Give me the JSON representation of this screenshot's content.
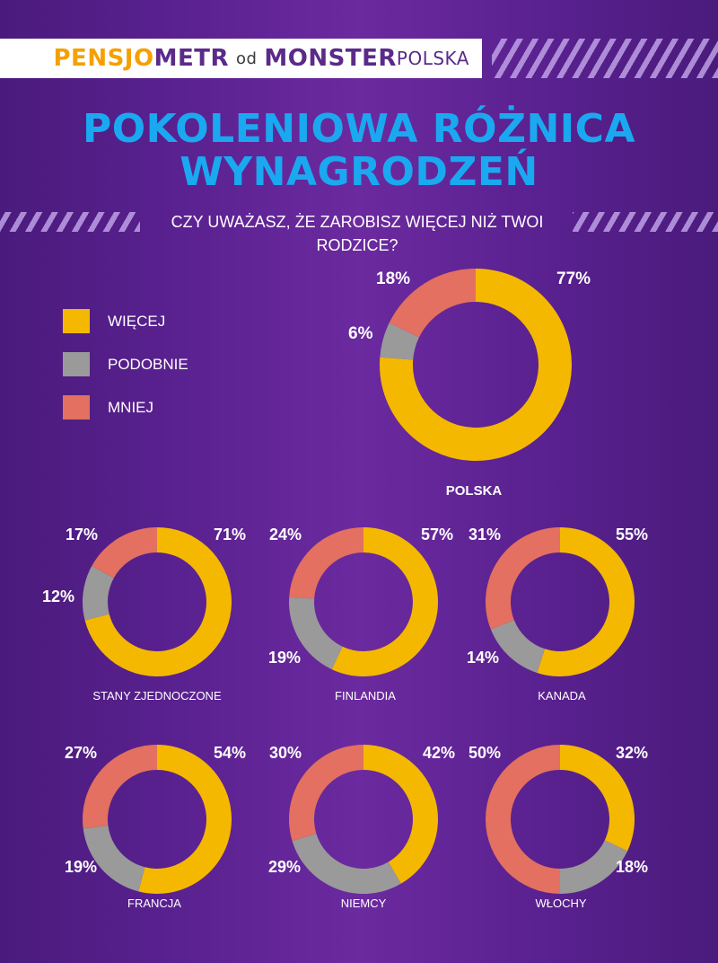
{
  "header": {
    "brand_part1": "PENSJO",
    "brand_part2": "METR",
    "connector": "od",
    "monster_part1": "MONSTER",
    "monster_part2": "POLSKA"
  },
  "title": {
    "line1": "POKOLENIOWA RÓŻNICA",
    "line2": "WYNAGRODZEŃ"
  },
  "subtitle": "CZY UWAŻASZ, ŻE ZAROBISZ WIĘCEJ NIŻ TWOI RODZICE?",
  "colors": {
    "wiecej": "#f5b800",
    "podobnie": "#9a9a9a",
    "mniej": "#e37060",
    "title": "#1aa9f0",
    "brand_orange": "#f5a000",
    "brand_purple": "#5b2a8a"
  },
  "legend": [
    {
      "label": "WIĘCEJ",
      "color": "#f5b800"
    },
    {
      "label": "PODOBNIE",
      "color": "#9a9a9a"
    },
    {
      "label": "MNIEJ",
      "color": "#e37060"
    }
  ],
  "chart_data": {
    "type": "pie",
    "subtype": "donut",
    "title": "POKOLENIOWA RÓŻNICA WYNAGRODZEŃ",
    "subtitle": "CZY UWAŻASZ, ŻE ZAROBISZ WIĘCEJ NIŻ TWOI RODZICE?",
    "categories": [
      "WIĘCEJ",
      "PODOBNIE",
      "MNIEJ"
    ],
    "legend_position": "top-left",
    "charts": [
      {
        "country": "POLSKA",
        "values": [
          77,
          6,
          18
        ],
        "labels": [
          "77%",
          "6%",
          "18%"
        ]
      },
      {
        "country": "STANY ZJEDNOCZONE",
        "values": [
          71,
          12,
          17
        ],
        "labels": [
          "71%",
          "12%",
          "17%"
        ]
      },
      {
        "country": "FINLANDIA",
        "values": [
          57,
          19,
          24
        ],
        "labels": [
          "57%",
          "19%",
          "24%"
        ]
      },
      {
        "country": "KANADA",
        "values": [
          55,
          14,
          31
        ],
        "labels": [
          "55%",
          "14%",
          "31%"
        ]
      },
      {
        "country": "FRANCJA",
        "values": [
          54,
          19,
          27
        ],
        "labels": [
          "54%",
          "19%",
          "27%"
        ]
      },
      {
        "country": "NIEMCY",
        "values": [
          42,
          29,
          30
        ],
        "labels": [
          "42%",
          "29%",
          "30%"
        ]
      },
      {
        "country": "WŁOCHY",
        "values": [
          32,
          18,
          50
        ],
        "labels": [
          "32%",
          "18%",
          "50%"
        ]
      }
    ]
  }
}
